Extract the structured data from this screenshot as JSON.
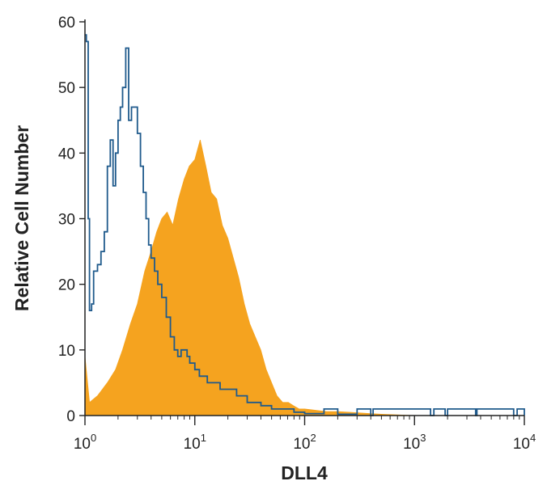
{
  "chart_data": {
    "type": "area",
    "title": "",
    "xlabel": "DLL4",
    "ylabel": "Relative Cell Number",
    "x_scale": "log",
    "xlim": [
      1,
      10000
    ],
    "ylim": [
      0,
      60
    ],
    "grid": false,
    "legend": "none",
    "x_tick_labels": [
      {
        "value": 1,
        "base": "10",
        "exp": "0"
      },
      {
        "value": 10,
        "base": "10",
        "exp": "1"
      },
      {
        "value": 100,
        "base": "10",
        "exp": "2"
      },
      {
        "value": 1000,
        "base": "10",
        "exp": "3"
      },
      {
        "value": 10000,
        "base": "10",
        "exp": "4"
      }
    ],
    "y_ticks": [
      0,
      10,
      20,
      30,
      40,
      50,
      60
    ],
    "series": [
      {
        "kind": "filled-histogram",
        "color": "#F5A31F",
        "x": [
          1,
          1.1,
          1.3,
          1.6,
          1.9,
          2.2,
          2.6,
          3.0,
          3.5,
          4.0,
          4.5,
          5.0,
          5.6,
          6.3,
          7.1,
          8.0,
          8.9,
          10.0,
          11.2,
          12.6,
          14.1,
          15.8,
          17.8,
          20.0,
          22.4,
          25.1,
          28.2,
          31.6,
          35.5,
          39.8,
          44.7,
          50,
          56,
          63,
          71,
          79,
          89,
          100,
          126,
          158,
          200,
          251,
          316,
          398,
          500,
          1000,
          10000
        ],
        "y": [
          9,
          2,
          3,
          5,
          7,
          10,
          14,
          17,
          22,
          25,
          28,
          30,
          31,
          29,
          33,
          36,
          38,
          39,
          42,
          38,
          34,
          33,
          29,
          27,
          24,
          21,
          17,
          14,
          12,
          10,
          7,
          5,
          3,
          2,
          2,
          1.5,
          1,
          1,
          0.8,
          0.6,
          0.6,
          0.5,
          0.4,
          0.3,
          0.2,
          0,
          0
        ]
      },
      {
        "kind": "outline-histogram",
        "color": "#1F5A8C",
        "x": [
          1.0,
          1.03,
          1.07,
          1.1,
          1.15,
          1.2,
          1.3,
          1.4,
          1.5,
          1.6,
          1.7,
          1.8,
          1.9,
          2.0,
          2.1,
          2.2,
          2.35,
          2.5,
          2.65,
          2.8,
          3.0,
          3.2,
          3.4,
          3.6,
          3.8,
          4.0,
          4.3,
          4.6,
          5.0,
          5.5,
          6.0,
          6.5,
          7.0,
          7.5,
          8.0,
          8.5,
          9.0,
          10,
          11,
          12,
          13,
          15,
          17,
          19,
          21,
          24,
          27,
          30,
          35,
          40,
          50,
          60,
          80,
          100,
          150,
          200,
          300,
          400,
          420,
          1400,
          1500,
          1900,
          2000,
          3600,
          3700,
          8000,
          8600,
          10000
        ],
        "y": [
          58,
          57,
          30,
          16,
          17,
          22,
          23,
          25,
          28,
          38,
          42,
          35,
          40,
          45,
          47,
          50,
          56,
          45,
          47,
          47,
          43,
          38,
          34,
          30,
          26,
          24,
          22,
          20,
          18,
          15,
          12,
          10,
          9,
          10,
          10,
          9,
          8,
          7,
          6,
          6,
          5,
          5,
          4,
          4,
          4,
          3,
          3,
          2,
          2,
          1.5,
          1,
          1,
          0.5,
          0.3,
          1,
          0.2,
          1,
          0,
          1,
          0,
          1,
          0,
          1,
          0,
          1,
          0,
          1,
          0
        ]
      }
    ]
  }
}
